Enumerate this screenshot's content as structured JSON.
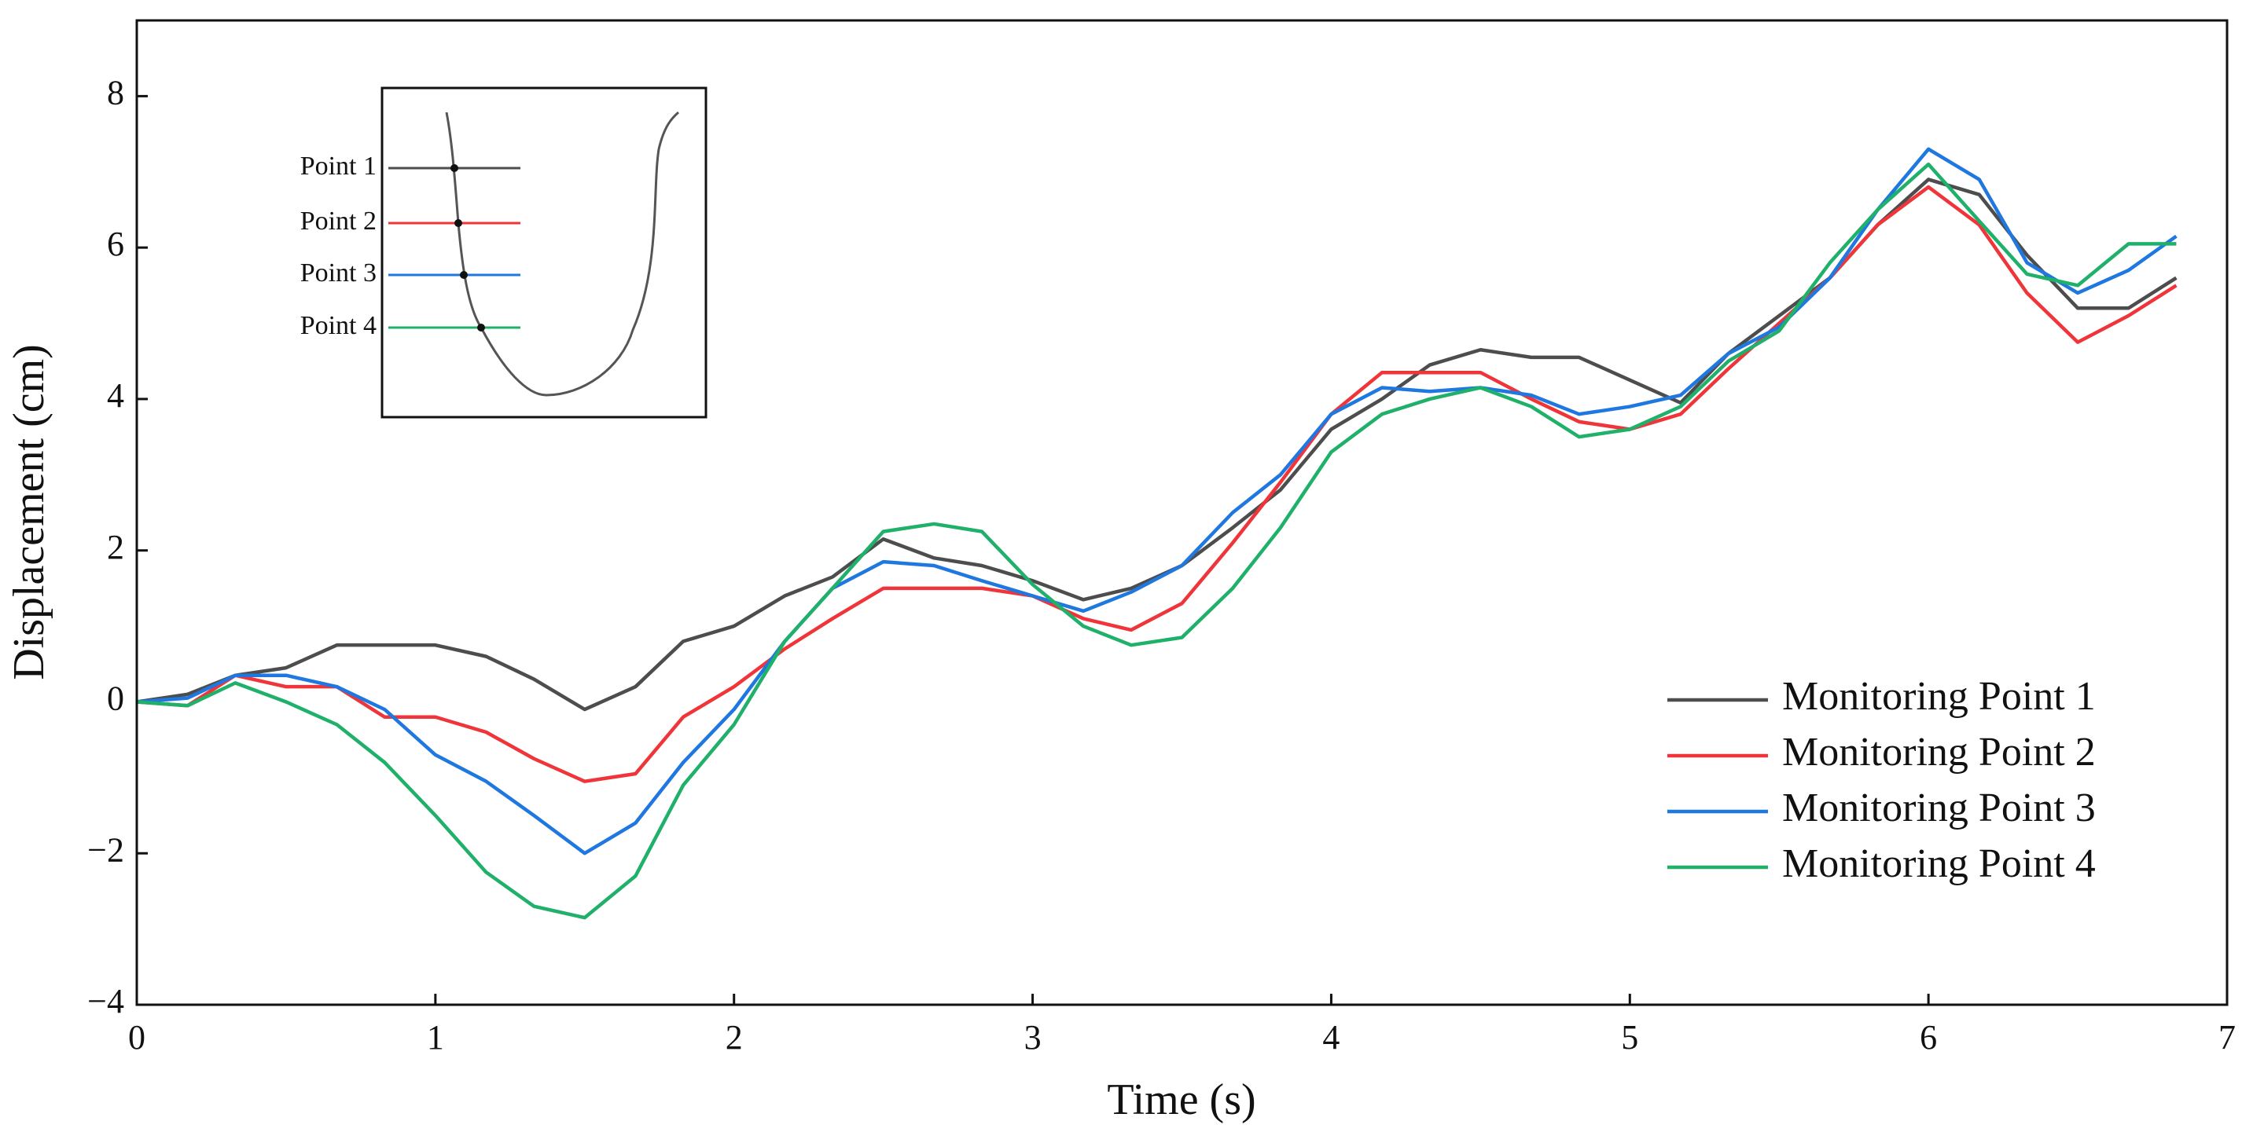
{
  "chart_data": {
    "type": "line",
    "x_label": "Time (s)",
    "y_label": "Displacement (cm)",
    "x": [
      0,
      0.17,
      0.33,
      0.5,
      0.67,
      0.83,
      1,
      1.17,
      1.33,
      1.5,
      1.67,
      1.83,
      2,
      2.17,
      2.33,
      2.5,
      2.67,
      2.83,
      3,
      3.17,
      3.33,
      3.5,
      3.67,
      3.83,
      4,
      4.17,
      4.33,
      4.5,
      4.67,
      4.83,
      5,
      5.17,
      5.33,
      5.5,
      5.67,
      5.83,
      6,
      6.17,
      6.33,
      6.5,
      6.67,
      6.83
    ],
    "series": [
      {
        "name": "Monitoring Point 1",
        "color": "#4d4d4d",
        "values": [
          0,
          0.1,
          0.35,
          0.45,
          0.75,
          0.75,
          0.75,
          0.6,
          0.3,
          -0.1,
          0.2,
          0.8,
          1.0,
          1.4,
          1.65,
          2.15,
          1.9,
          1.8,
          1.6,
          1.35,
          1.5,
          1.8,
          2.3,
          2.8,
          3.6,
          4.0,
          4.45,
          4.65,
          4.55,
          4.55,
          4.25,
          3.95,
          4.6,
          5.1,
          5.6,
          6.3,
          6.9,
          6.7,
          5.9,
          5.2,
          5.2,
          5.6
        ]
      },
      {
        "name": "Monitoring Point 2",
        "color": "#f0353a",
        "values": [
          0,
          -0.05,
          0.35,
          0.2,
          0.2,
          -0.2,
          -0.2,
          -0.4,
          -0.75,
          -1.05,
          -0.95,
          -0.2,
          0.2,
          0.7,
          1.1,
          1.5,
          1.5,
          1.5,
          1.4,
          1.1,
          0.95,
          1.3,
          2.1,
          2.9,
          3.8,
          4.35,
          4.35,
          4.35,
          4.0,
          3.7,
          3.6,
          3.8,
          4.4,
          5.0,
          5.6,
          6.3,
          6.8,
          6.3,
          5.4,
          4.75,
          5.1,
          5.5
        ]
      },
      {
        "name": "Monitoring Point 3",
        "color": "#1f77e0",
        "values": [
          0,
          0.05,
          0.35,
          0.35,
          0.2,
          -0.1,
          -0.7,
          -1.05,
          -1.5,
          -2.0,
          -1.6,
          -0.8,
          -0.1,
          0.8,
          1.5,
          1.85,
          1.8,
          1.6,
          1.4,
          1.2,
          1.45,
          1.8,
          2.5,
          3.0,
          3.8,
          4.15,
          4.1,
          4.15,
          4.05,
          3.8,
          3.9,
          4.05,
          4.6,
          4.95,
          5.6,
          6.5,
          7.3,
          6.9,
          5.8,
          5.4,
          5.7,
          6.15
        ]
      },
      {
        "name": "Monitoring Point 4",
        "color": "#1fb06a",
        "values": [
          0,
          -0.05,
          0.25,
          0,
          -0.3,
          -0.8,
          -1.5,
          -2.25,
          -2.7,
          -2.85,
          -2.3,
          -1.1,
          -0.3,
          0.8,
          1.5,
          2.25,
          2.35,
          2.25,
          1.55,
          1.0,
          0.75,
          0.85,
          1.5,
          2.3,
          3.3,
          3.8,
          4.0,
          4.15,
          3.9,
          3.5,
          3.6,
          3.9,
          4.5,
          4.9,
          5.8,
          6.5,
          7.1,
          6.35,
          5.65,
          5.5,
          6.05,
          6.05
        ]
      }
    ],
    "xlim": [
      0,
      7
    ],
    "xticks": [
      0,
      1,
      2,
      3,
      4,
      5,
      6,
      7
    ],
    "ylim": [
      -4,
      9
    ],
    "yticks": [
      {
        "value": -4,
        "label": "−4"
      },
      {
        "value": -2,
        "label": "−2"
      },
      0,
      2,
      4,
      6,
      8
    ],
    "grid": false,
    "legend": "lower right"
  },
  "inset": {
    "labels": [
      "Point 1",
      "Point 2",
      "Point 3",
      "Point 4"
    ]
  }
}
